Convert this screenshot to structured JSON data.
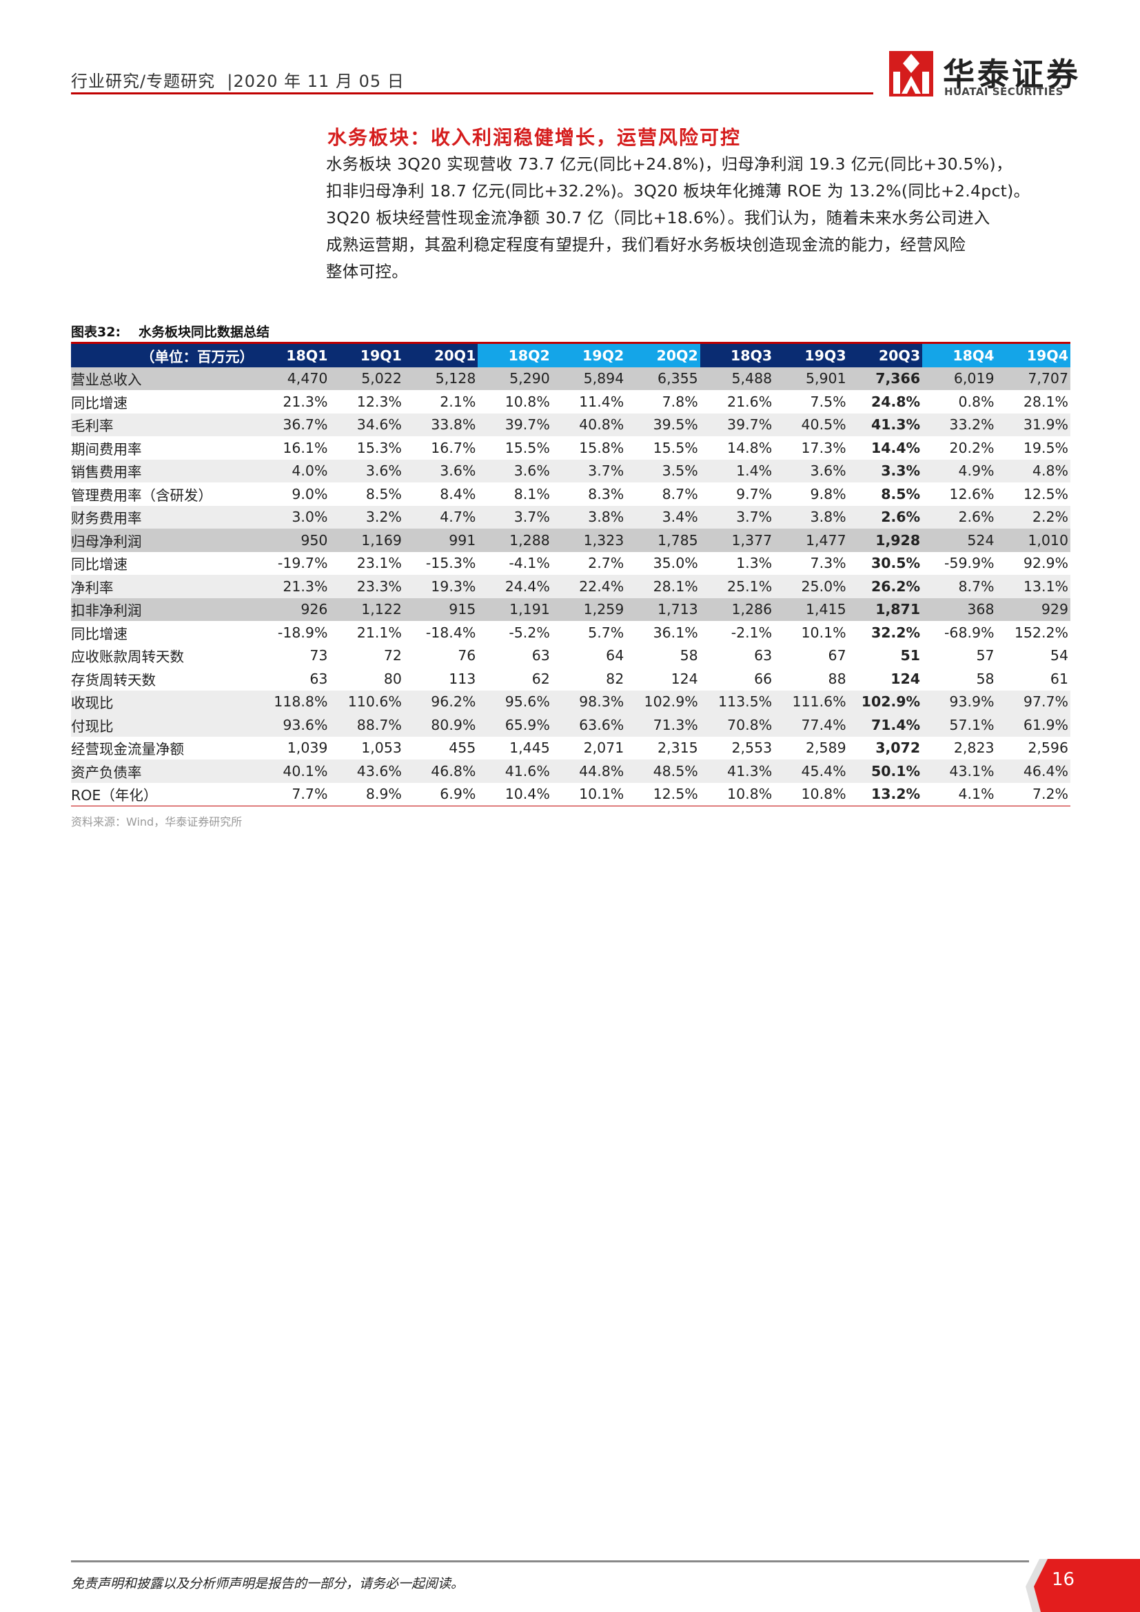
{
  "header": {
    "report_type": "行业研究/专题研究",
    "date": "2020 年 11 月 05 日",
    "logo_cn": "华泰证券",
    "logo_en": "HUATAI SECURITIES"
  },
  "section": {
    "title": "水务板块：收入利润稳健增长，运营风险可控",
    "paragraph_lines": [
      "水务板块 3Q20 实现营收 73.7 亿元(同比+24.8%)，归母净利润 19.3 亿元(同比+30.5%)，",
      "扣非归母净利 18.7 亿元(同比+32.2%)。3Q20 板块年化摊薄 ROE 为 13.2%(同比+2.4pct)。",
      "3Q20 板块经营性现金流净额 30.7 亿（同比+18.6%）。我们认为，随着未来水务公司进入",
      "成熟运营期，其盈利稳定程度有望提升，我们看好水务板块创造现金流的能力，经营风险",
      "整体可控。"
    ]
  },
  "figure": {
    "number": "图表32:",
    "title": "水务板块同比数据总结",
    "unit_label": "（单位：百万元）",
    "columns": [
      "18Q1",
      "19Q1",
      "20Q1",
      "18Q2",
      "19Q2",
      "20Q2",
      "18Q3",
      "19Q3",
      "20Q3",
      "18Q4",
      "19Q4"
    ],
    "rows": [
      {
        "label": "营业总收入",
        "values": [
          "4,470",
          "5,022",
          "5,128",
          "5,290",
          "5,894",
          "6,355",
          "5,488",
          "5,901",
          "7,366",
          "6,019",
          "7,707"
        ]
      },
      {
        "label": "同比增速",
        "values": [
          "21.3%",
          "12.3%",
          "2.1%",
          "10.8%",
          "11.4%",
          "7.8%",
          "21.6%",
          "7.5%",
          "24.8%",
          "0.8%",
          "28.1%"
        ]
      },
      {
        "label": "毛利率",
        "values": [
          "36.7%",
          "34.6%",
          "33.8%",
          "39.7%",
          "40.8%",
          "39.5%",
          "39.7%",
          "40.5%",
          "41.3%",
          "33.2%",
          "31.9%"
        ]
      },
      {
        "label": "期间费用率",
        "values": [
          "16.1%",
          "15.3%",
          "16.7%",
          "15.5%",
          "15.8%",
          "15.5%",
          "14.8%",
          "17.3%",
          "14.4%",
          "20.2%",
          "19.5%"
        ]
      },
      {
        "label": "销售费用率",
        "values": [
          "4.0%",
          "3.6%",
          "3.6%",
          "3.6%",
          "3.7%",
          "3.5%",
          "1.4%",
          "3.6%",
          "3.3%",
          "4.9%",
          "4.8%"
        ]
      },
      {
        "label": "管理费用率（含研发）",
        "values": [
          "9.0%",
          "8.5%",
          "8.4%",
          "8.1%",
          "8.3%",
          "8.7%",
          "9.7%",
          "9.8%",
          "8.5%",
          "12.6%",
          "12.5%"
        ]
      },
      {
        "label": "财务费用率",
        "values": [
          "3.0%",
          "3.2%",
          "4.7%",
          "3.7%",
          "3.8%",
          "3.4%",
          "3.7%",
          "3.8%",
          "2.6%",
          "2.6%",
          "2.2%"
        ]
      },
      {
        "label": "归母净利润",
        "values": [
          "950",
          "1,169",
          "991",
          "1,288",
          "1,323",
          "1,785",
          "1,377",
          "1,477",
          "1,928",
          "524",
          "1,010"
        ]
      },
      {
        "label": "同比增速",
        "values": [
          "-19.7%",
          "23.1%",
          "-15.3%",
          "-4.1%",
          "2.7%",
          "35.0%",
          "1.3%",
          "7.3%",
          "30.5%",
          "-59.9%",
          "92.9%"
        ]
      },
      {
        "label": "净利率",
        "values": [
          "21.3%",
          "23.3%",
          "19.3%",
          "24.4%",
          "22.4%",
          "28.1%",
          "25.1%",
          "25.0%",
          "26.2%",
          "8.7%",
          "13.1%"
        ]
      },
      {
        "label": "扣非净利润",
        "values": [
          "926",
          "1,122",
          "915",
          "1,191",
          "1,259",
          "1,713",
          "1,286",
          "1,415",
          "1,871",
          "368",
          "929"
        ]
      },
      {
        "label": "同比增速",
        "values": [
          "-18.9%",
          "21.1%",
          "-18.4%",
          "-5.2%",
          "5.7%",
          "36.1%",
          "-2.1%",
          "10.1%",
          "32.2%",
          "-68.9%",
          "152.2%"
        ]
      },
      {
        "label": "应收账款周转天数",
        "values": [
          "73",
          "72",
          "76",
          "63",
          "64",
          "58",
          "63",
          "67",
          "51",
          "57",
          "54"
        ]
      },
      {
        "label": "存货周转天数",
        "values": [
          "63",
          "80",
          "113",
          "62",
          "82",
          "124",
          "66",
          "88",
          "124",
          "58",
          "61"
        ]
      },
      {
        "label": "收现比",
        "values": [
          "118.8%",
          "110.6%",
          "96.2%",
          "95.6%",
          "98.3%",
          "102.9%",
          "113.5%",
          "111.6%",
          "102.9%",
          "93.9%",
          "97.7%"
        ]
      },
      {
        "label": "付现比",
        "values": [
          "93.6%",
          "88.7%",
          "80.9%",
          "65.9%",
          "63.6%",
          "71.3%",
          "70.8%",
          "77.4%",
          "71.4%",
          "57.1%",
          "61.9%"
        ]
      },
      {
        "label": "经营现金流量净额",
        "values": [
          "1,039",
          "1,053",
          "455",
          "1,445",
          "2,071",
          "2,315",
          "2,553",
          "2,589",
          "3,072",
          "2,823",
          "2,596"
        ]
      },
      {
        "label": "资产负债率",
        "values": [
          "40.1%",
          "43.6%",
          "46.8%",
          "41.6%",
          "44.8%",
          "48.5%",
          "41.3%",
          "45.4%",
          "50.1%",
          "43.1%",
          "46.4%"
        ]
      },
      {
        "label": "ROE（年化）",
        "values": [
          "7.7%",
          "8.9%",
          "6.9%",
          "10.4%",
          "10.1%",
          "12.5%",
          "10.8%",
          "10.8%",
          "13.2%",
          "4.1%",
          "7.2%"
        ]
      }
    ],
    "source": "资料来源：Wind，华泰证券研究所"
  },
  "footer": {
    "disclaimer": "免责声明和披露以及分析师声明是报告的一部分，请务必一起阅读。",
    "page_number": "16"
  },
  "colors": {
    "brand_red": "#d51c1c",
    "header_navy": "#0a2c72",
    "header_cyan": "#14a5e8"
  }
}
